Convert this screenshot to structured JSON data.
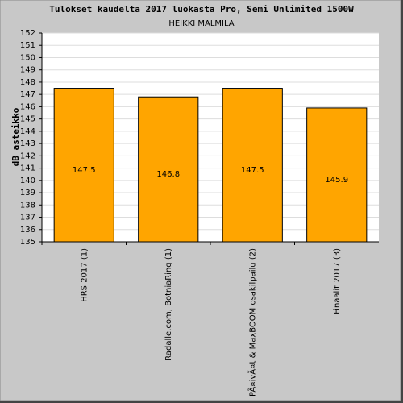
{
  "chart_data": {
    "type": "bar",
    "title": "Tulokset kaudelta 2017 luokasta Pro, Semi Unlimited 1500W",
    "subtitle": "HEIKKI MALMILA",
    "y_label": "dB asteikko",
    "categories": [
      "HRS 2017 (1)",
      "Radalle.com, BotniaRing (1)",
      "PÃ¤ivÃ¤t & MaxBOOM osakilpailu (2)",
      "Finaalit 2017 (3)"
    ],
    "values": [
      147.5,
      146.8,
      147.5,
      145.9
    ],
    "color": "#ffa500",
    "ylim": [
      135,
      152
    ],
    "yticks": [
      135,
      136,
      137,
      138,
      139,
      140,
      141,
      142,
      143,
      144,
      145,
      146,
      147,
      148,
      149,
      150,
      151,
      152
    ],
    "grid": true
  }
}
